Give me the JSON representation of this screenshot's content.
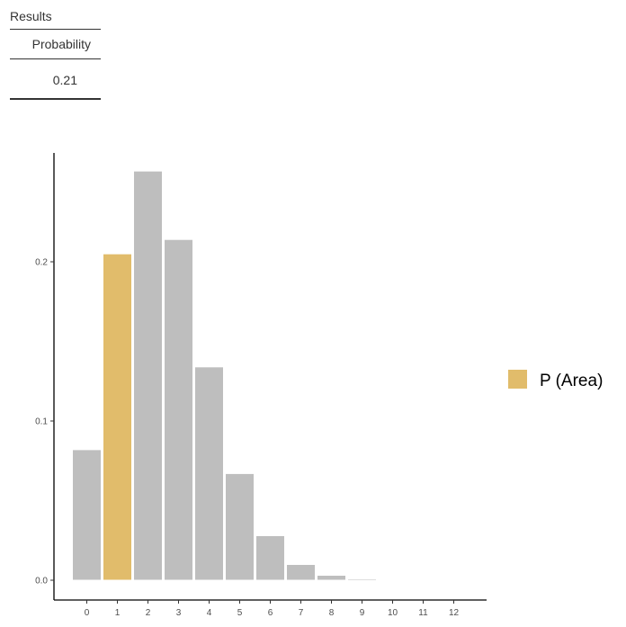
{
  "results": {
    "title": "Results",
    "column": "Probability",
    "value": "0.21"
  },
  "chart_data": {
    "type": "bar",
    "categories": [
      "0",
      "1",
      "2",
      "3",
      "4",
      "5",
      "6",
      "7",
      "8",
      "9",
      "10",
      "11",
      "12"
    ],
    "values": [
      0.082,
      0.205,
      0.257,
      0.214,
      0.134,
      0.067,
      0.028,
      0.0099,
      0.0031,
      0.00086,
      0.0002,
      5e-05,
      1e-05
    ],
    "highlighted": [
      "1"
    ],
    "y_ticks": [
      "0.0",
      "0.1",
      "0.2"
    ],
    "ylim": [
      -0.012,
      0.27
    ],
    "legend": {
      "label": "P (Area)",
      "placement": "right"
    },
    "colors": {
      "bar": "#bebebe",
      "highlight": "#e1bc6b"
    },
    "title": "",
    "xlabel": "",
    "ylabel": ""
  }
}
